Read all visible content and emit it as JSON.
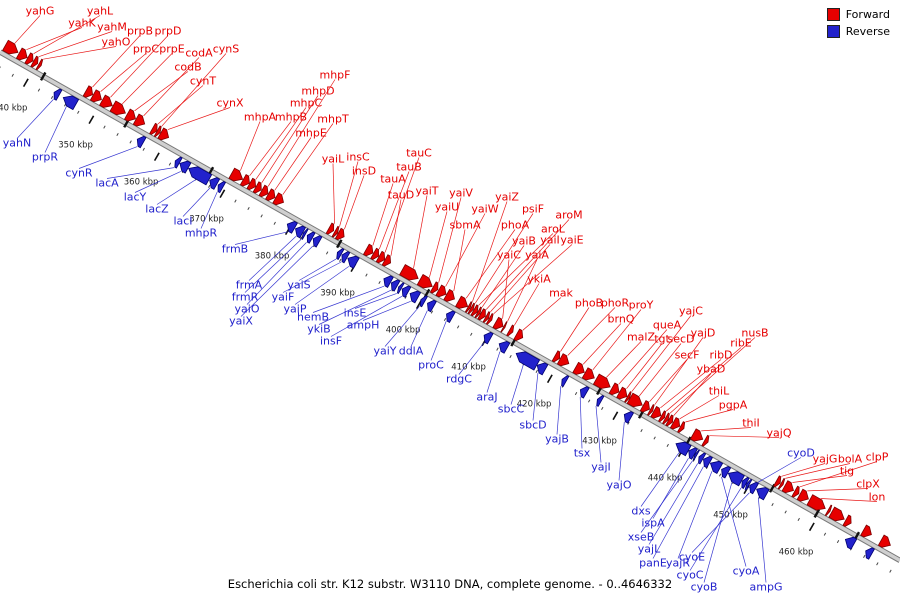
{
  "legend": {
    "items": [
      {
        "label": "Forward",
        "color": "#e60000"
      },
      {
        "label": "Reverse",
        "color": "#2222cc"
      }
    ]
  },
  "caption": "Escherichia coli str. K12 substr. W3110 DNA, complete genome. - 0..4646332",
  "genome": {
    "view_start_kbp": 335,
    "view_end_kbp": 472.4,
    "scale_unit": "kbp",
    "colors": {
      "forward": "#e60000",
      "forward_edge": "#7d0000",
      "reverse": "#2222cc",
      "reverse_edge": "#000070",
      "axis": "#cfcfcf",
      "axis_edge": "#7a7a7a",
      "tick": "#111111",
      "text": "#222222"
    },
    "scale_ticks": [
      {
        "kbp": 340,
        "label": "340 kbp"
      },
      {
        "kbp": 350,
        "label": "350 kbp"
      },
      {
        "kbp": 360,
        "label": "360 kbp"
      },
      {
        "kbp": 370,
        "label": "370 kbp"
      },
      {
        "kbp": 380,
        "label": "380 kbp"
      },
      {
        "kbp": 390,
        "label": "390 kbp"
      },
      {
        "kbp": 400,
        "label": "400 kbp"
      },
      {
        "kbp": 410,
        "label": "410 kbp"
      },
      {
        "kbp": 420,
        "label": "420 kbp"
      },
      {
        "kbp": 430,
        "label": "430 kbp"
      },
      {
        "kbp": 440,
        "label": "440 kbp"
      },
      {
        "kbp": 450,
        "label": "450 kbp"
      },
      {
        "kbp": 460,
        "label": "460 kbp"
      }
    ],
    "misc_marks_kbp": [
      341.6,
      354.3,
      367.2,
      386.8,
      400.2,
      413.4,
      426.5,
      432.9,
      440.1,
      452.9,
      459.7,
      465.8
    ],
    "genes_fields": [
      "name",
      "strand",
      "start_kbp",
      "length_kbp",
      "label_x",
      "label_y"
    ],
    "genes": [
      [
        "yahG",
        "+",
        335.2,
        1.9,
        40,
        11
      ],
      [
        "yahK",
        "+",
        337.3,
        1.2,
        82,
        23
      ],
      [
        "yahL",
        "+",
        338.6,
        0.8,
        100,
        11
      ],
      [
        "yahM",
        "+",
        339.5,
        0.6,
        112,
        27
      ],
      [
        "yahO",
        "+",
        340.3,
        0.35,
        116,
        42
      ],
      [
        "yahN",
        "-",
        343.9,
        0.75,
        17,
        143
      ],
      [
        "prpR",
        "-",
        345.3,
        1.9,
        45,
        157
      ],
      [
        "prpB",
        "+",
        347.5,
        1.0,
        140,
        31
      ],
      [
        "prpC",
        "+",
        348.6,
        1.25,
        146,
        49
      ],
      [
        "prpD",
        "+",
        350.0,
        1.5,
        168,
        31
      ],
      [
        "prpE",
        "+",
        351.6,
        1.9,
        172,
        49
      ],
      [
        "codB",
        "+",
        353.8,
        1.25,
        188,
        67
      ],
      [
        "codA",
        "+",
        355.15,
        1.3,
        199,
        53
      ],
      [
        "cynR",
        "-",
        356.6,
        0.9,
        79,
        173
      ],
      [
        "cynT",
        "+",
        357.65,
        0.66,
        203,
        81
      ],
      [
        "cynS",
        "+",
        358.35,
        0.45,
        226,
        49
      ],
      [
        "cynX",
        "+",
        358.9,
        1.2,
        230,
        103
      ],
      [
        "lacA",
        "-",
        362.4,
        0.6,
        107,
        183
      ],
      [
        "lacY",
        "-",
        363.1,
        1.25,
        135,
        197
      ],
      [
        "lacZ",
        "-",
        364.45,
        3.07,
        157,
        209
      ],
      [
        "lacI",
        "-",
        367.65,
        1.08,
        183,
        221
      ],
      [
        "mhpR",
        "-",
        368.95,
        0.68,
        201,
        233
      ],
      [
        "mhpA",
        "+",
        369.75,
        1.65,
        260,
        117
      ],
      [
        "mhpB",
        "+",
        371.5,
        0.95,
        291,
        117
      ],
      [
        "mhpC",
        "+",
        372.5,
        0.88,
        306,
        103
      ],
      [
        "mhpD",
        "+",
        373.45,
        0.8,
        318,
        91
      ],
      [
        "mhpF",
        "+",
        374.35,
        0.93,
        335,
        75
      ],
      [
        "mhpE",
        "+",
        375.35,
        1.0,
        311,
        133
      ],
      [
        "mhpT",
        "+",
        376.45,
        1.2,
        333,
        119
      ],
      [
        "frmB",
        "-",
        379.5,
        1.1,
        235,
        249
      ],
      [
        "frmA",
        "-",
        380.75,
        1.1,
        249,
        285
      ],
      [
        "frmR",
        "-",
        381.95,
        0.3,
        245,
        297
      ],
      [
        "yaiO",
        "-",
        382.55,
        0.75,
        247,
        309
      ],
      [
        "yaiX",
        "-",
        383.45,
        0.9,
        241,
        321
      ],
      [
        "yaiL",
        "+",
        384.6,
        0.7,
        333,
        159
      ],
      [
        "insC",
        "+",
        385.5,
        0.4,
        358,
        157
      ],
      [
        "insD",
        "+",
        386.0,
        0.9,
        364,
        171
      ],
      [
        "yaiS",
        "-",
        387.15,
        0.55,
        299,
        285
      ],
      [
        "yaiF",
        "-",
        387.85,
        0.75,
        283,
        297
      ],
      [
        "yaiP",
        "-",
        388.75,
        1.3,
        295,
        309
      ],
      [
        "tauA",
        "+",
        390.3,
        1.0,
        393,
        179
      ],
      [
        "tauB",
        "+",
        391.4,
        0.77,
        409,
        167
      ],
      [
        "tauC",
        "+",
        392.25,
        0.85,
        419,
        153
      ],
      [
        "tauD",
        "+",
        393.15,
        0.85,
        401,
        195
      ],
      [
        "hemB",
        "-",
        394.25,
        1.0,
        313,
        317
      ],
      [
        "ykiB",
        "-",
        395.4,
        0.85,
        319,
        329
      ],
      [
        "yaiT",
        "+",
        395.8,
        2.4,
        427,
        191
      ],
      [
        "insE",
        "-",
        396.5,
        0.4,
        355,
        313
      ],
      [
        "insF",
        "-",
        397.05,
        0.87,
        331,
        341
      ],
      [
        "ampH",
        "-",
        398.25,
        1.16,
        363,
        325
      ],
      [
        "yaiU",
        "+",
        398.5,
        1.85,
        447,
        207
      ],
      [
        "yaiY",
        "-",
        399.9,
        0.55,
        385,
        351
      ],
      [
        "yaiV",
        "+",
        400.5,
        0.7,
        461,
        193
      ],
      [
        "ddlA",
        "-",
        400.9,
        0.92,
        411,
        351
      ],
      [
        "yaiW",
        "+",
        401.35,
        1.1,
        485,
        209
      ],
      [
        "sbmA",
        "+",
        402.55,
        1.2,
        465,
        225
      ],
      [
        "proC",
        "-",
        403.8,
        0.9,
        431,
        365
      ],
      [
        "phoA",
        "+",
        404.35,
        1.4,
        515,
        225
      ],
      [
        "yaiZ",
        "+",
        405.85,
        0.3,
        507,
        197
      ],
      [
        "psiF",
        "+",
        406.25,
        0.35,
        533,
        209
      ],
      [
        "aroL",
        "+",
        406.7,
        0.53,
        553,
        229
      ],
      [
        "yaiB",
        "+",
        407.3,
        0.35,
        524,
        241
      ],
      [
        "aroM",
        "+",
        407.75,
        0.7,
        569,
        215
      ],
      [
        "yaiI",
        "+",
        408.55,
        0.4,
        550,
        240
      ],
      [
        "yaiE",
        "+",
        409.05,
        0.4,
        572,
        240
      ],
      [
        "rdgC",
        "-",
        409.55,
        0.93,
        459,
        379
      ],
      [
        "yaiC",
        "+",
        410.05,
        1.1,
        509,
        255
      ],
      [
        "yaiA",
        "+",
        411.25,
        0.2,
        537,
        255
      ],
      [
        "araJ",
        "-",
        411.85,
        1.18,
        487,
        397
      ],
      [
        "ykiA",
        "+",
        412.15,
        0.5,
        539,
        279
      ],
      [
        "mak",
        "+",
        413.25,
        0.92,
        561,
        293
      ],
      [
        "sbcC",
        "-",
        414.45,
        3.14,
        511,
        409
      ],
      [
        "sbcD",
        "-",
        417.65,
        1.2,
        533,
        425
      ],
      [
        "phoB",
        "+",
        419.1,
        0.7,
        589,
        303
      ],
      [
        "phoR",
        "+",
        419.9,
        1.3,
        615,
        303
      ],
      [
        "yajB",
        "-",
        421.45,
        0.6,
        557,
        439
      ],
      [
        "brnQ",
        "+",
        422.25,
        1.32,
        621,
        319
      ],
      [
        "proY",
        "+",
        423.7,
        1.4,
        641,
        305
      ],
      [
        "tsx",
        "-",
        424.25,
        0.9,
        582,
        453
      ],
      [
        "malZ",
        "+",
        425.4,
        2.1,
        641,
        337
      ],
      [
        "yajI",
        "-",
        426.85,
        0.55,
        601,
        467
      ],
      [
        "queA",
        "+",
        427.8,
        1.07,
        667,
        325
      ],
      [
        "tgt",
        "+",
        428.95,
        1.13,
        662,
        339
      ],
      [
        "yajC",
        "+",
        430.15,
        0.33,
        691,
        311
      ],
      [
        "secD",
        "+",
        430.55,
        1.85,
        681,
        339
      ],
      [
        "yajO",
        "-",
        430.95,
        0.97,
        619,
        485
      ],
      [
        "secF",
        "+",
        432.55,
        0.97,
        687,
        355
      ],
      [
        "yajD",
        "+",
        433.65,
        0.36,
        703,
        333
      ],
      [
        "ribD",
        "+",
        434.15,
        1.1,
        721,
        355
      ],
      [
        "ribE",
        "+",
        435.35,
        0.47,
        741,
        343
      ],
      [
        "nusB",
        "+",
        435.95,
        0.42,
        755,
        333
      ],
      [
        "ybaD",
        "+",
        436.45,
        0.58,
        711,
        369
      ],
      [
        "thiL",
        "+",
        437.15,
        0.98,
        719,
        391
      ],
      [
        "pgpA",
        "+",
        438.25,
        0.52,
        733,
        405
      ],
      [
        "dxs",
        "-",
        438.85,
        1.86,
        641,
        511
      ],
      [
        "thiI",
        "+",
        440.2,
        1.45,
        751,
        423
      ],
      [
        "ispA",
        "-",
        440.8,
        0.88,
        653,
        523
      ],
      [
        "xseB",
        "-",
        441.75,
        0.25,
        641,
        537
      ],
      [
        "yajQ",
        "+",
        441.95,
        0.5,
        779,
        433
      ],
      [
        "yajL",
        "-",
        442.35,
        0.6,
        649,
        549
      ],
      [
        "panE",
        "-",
        443.05,
        0.92,
        653,
        563
      ],
      [
        "yajR",
        "-",
        444.1,
        1.42,
        678,
        563
      ],
      [
        "cyoA",
        "-",
        445.8,
        0.95,
        746,
        571
      ],
      [
        "cyoB",
        "-",
        446.85,
        2.0,
        704,
        587
      ],
      [
        "cyoC",
        "-",
        448.95,
        0.62,
        690,
        575
      ],
      [
        "cyoD",
        "-",
        449.65,
        0.33,
        801,
        453
      ],
      [
        "cyoE",
        "-",
        450.1,
        0.89,
        692,
        557
      ],
      [
        "ampG",
        "-",
        451.15,
        1.48,
        766,
        587
      ],
      [
        "yajG",
        "+",
        452.9,
        0.58,
        825,
        459
      ],
      [
        "bolA",
        "+",
        453.6,
        0.32,
        850,
        459
      ],
      [
        "tig",
        "+",
        454.2,
        1.3,
        847,
        471
      ],
      [
        "clpP",
        "+",
        455.7,
        0.62,
        877,
        457
      ],
      [
        "clpX",
        "+",
        456.5,
        1.28,
        868,
        484
      ],
      [
        "lon",
        "+",
        458.0,
        2.35,
        877,
        497
      ],
      [
        "",
        "+",
        460.8,
        0.3
      ],
      [
        "",
        "+",
        461.35,
        1.9
      ],
      [
        "",
        "+",
        463.5,
        0.8
      ],
      [
        "",
        "-",
        464.7,
        1.3
      ],
      [
        "",
        "+",
        466.2,
        1.2
      ],
      [
        "",
        "-",
        467.8,
        0.9
      ],
      [
        "",
        "+",
        468.9,
        1.4
      ]
    ]
  }
}
